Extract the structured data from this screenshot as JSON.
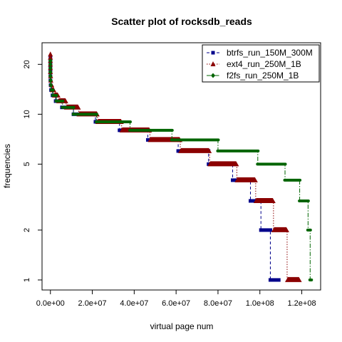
{
  "chart_data": {
    "type": "scatter",
    "title": "Scatter plot of rocksdb_reads",
    "xlabel": "virtual page num",
    "ylabel": "frequencies",
    "log_y": true,
    "xlim": [
      -4000000.0,
      129000000.0
    ],
    "ylim": [
      0.87,
      27
    ],
    "x_ticks": [
      {
        "value": 0,
        "label": "0.0e+00"
      },
      {
        "value": 20000000,
        "label": "2.0e+07"
      },
      {
        "value": 40000000,
        "label": "4.0e+07"
      },
      {
        "value": 60000000,
        "label": "6.0e+07"
      },
      {
        "value": 80000000,
        "label": "8.0e+07"
      },
      {
        "value": 100000000,
        "label": "1.0e+08"
      },
      {
        "value": 120000000,
        "label": "1.2e+08"
      }
    ],
    "y_ticks": [
      {
        "value": 1,
        "label": "1"
      },
      {
        "value": 2,
        "label": "2"
      },
      {
        "value": 5,
        "label": "5"
      },
      {
        "value": 10,
        "label": "10"
      },
      {
        "value": 20,
        "label": "20"
      }
    ],
    "legend_position": "top-right",
    "series": [
      {
        "name": "btrfs_run_150M_300M",
        "color": "#00008B",
        "marker": "square",
        "line": "dashed",
        "steps": [
          {
            "y": 22,
            "x": [
              0,
              0
            ]
          },
          {
            "y": 21,
            "x": [
              0,
              0
            ]
          },
          {
            "y": 20,
            "x": [
              0,
              0
            ]
          },
          {
            "y": 19,
            "x": [
              0,
              0
            ]
          },
          {
            "y": 18,
            "x": [
              0,
              0
            ]
          },
          {
            "y": 17,
            "x": [
              0,
              0
            ]
          },
          {
            "y": 16,
            "x": [
              0,
              100000
            ]
          },
          {
            "y": 15,
            "x": [
              100000,
              300000
            ]
          },
          {
            "y": 14,
            "x": [
              300000,
              1000000
            ]
          },
          {
            "y": 13,
            "x": [
              1000000,
              2500000
            ]
          },
          {
            "y": 12,
            "x": [
              2500000,
              5500000
            ]
          },
          {
            "y": 11,
            "x": [
              5500000,
              11000000
            ]
          },
          {
            "y": 10,
            "x": [
              11000000,
              21500000
            ]
          },
          {
            "y": 9,
            "x": [
              21500000,
              33000000
            ]
          },
          {
            "y": 8,
            "x": [
              33000000,
              46500000
            ]
          },
          {
            "y": 7,
            "x": [
              46500000,
              61000000
            ]
          },
          {
            "y": 6,
            "x": [
              61000000,
              75500000
            ]
          },
          {
            "y": 5,
            "x": [
              75500000,
              87000000
            ]
          },
          {
            "y": 4,
            "x": [
              87000000,
              95500000
            ]
          },
          {
            "y": 3,
            "x": [
              95500000,
              100500000
            ]
          },
          {
            "y": 2,
            "x": [
              100500000,
              105000000
            ]
          },
          {
            "y": 1,
            "x": [
              105000000,
              109000000
            ]
          }
        ]
      },
      {
        "name": "ext4_run_250M_1B",
        "color": "#8B0000",
        "marker": "triangle",
        "line": "dotted",
        "steps": [
          {
            "y": 23,
            "x": [
              0,
              0
            ]
          },
          {
            "y": 22,
            "x": [
              0,
              0
            ]
          },
          {
            "y": 21,
            "x": [
              0,
              0
            ]
          },
          {
            "y": 20,
            "x": [
              0,
              0
            ]
          },
          {
            "y": 19,
            "x": [
              0,
              0
            ]
          },
          {
            "y": 18,
            "x": [
              0,
              100000
            ]
          },
          {
            "y": 17,
            "x": [
              100000,
              200000
            ]
          },
          {
            "y": 16,
            "x": [
              200000,
              400000
            ]
          },
          {
            "y": 15,
            "x": [
              400000,
              800000
            ]
          },
          {
            "y": 14,
            "x": [
              800000,
              1800000
            ]
          },
          {
            "y": 13,
            "x": [
              1800000,
              3800000
            ]
          },
          {
            "y": 12,
            "x": [
              3800000,
              7500000
            ]
          },
          {
            "y": 11,
            "x": [
              7500000,
              13500000
            ]
          },
          {
            "y": 10,
            "x": [
              13500000,
              22500000
            ]
          },
          {
            "y": 9,
            "x": [
              22500000,
              34000000
            ]
          },
          {
            "y": 8,
            "x": [
              34000000,
              47500000
            ]
          },
          {
            "y": 7,
            "x": [
              47500000,
              62000000
            ]
          },
          {
            "y": 6,
            "x": [
              62000000,
              76000000
            ]
          },
          {
            "y": 5,
            "x": [
              76000000,
              89000000
            ]
          },
          {
            "y": 4,
            "x": [
              89000000,
              98000000
            ]
          },
          {
            "y": 3,
            "x": [
              98000000,
              106500000
            ]
          },
          {
            "y": 2,
            "x": [
              106500000,
              113000000
            ]
          },
          {
            "y": 1,
            "x": [
              113000000,
              119000000
            ]
          }
        ]
      },
      {
        "name": "f2fs_run_250M_1B",
        "color": "#006400",
        "marker": "diamond",
        "line": "dotdash",
        "steps": [
          {
            "y": 21,
            "x": [
              0,
              0
            ]
          },
          {
            "y": 20,
            "x": [
              0,
              0
            ]
          },
          {
            "y": 19,
            "x": [
              0,
              0
            ]
          },
          {
            "y": 18,
            "x": [
              0,
              0
            ]
          },
          {
            "y": 17,
            "x": [
              0,
              100000
            ]
          },
          {
            "y": 16,
            "x": [
              100000,
              200000
            ]
          },
          {
            "y": 15,
            "x": [
              200000,
              500000
            ]
          },
          {
            "y": 14,
            "x": [
              500000,
              1200000
            ]
          },
          {
            "y": 13,
            "x": [
              1200000,
              2800000
            ]
          },
          {
            "y": 12,
            "x": [
              2800000,
              5800000
            ]
          },
          {
            "y": 11,
            "x": [
              5800000,
              11000000
            ]
          },
          {
            "y": 10,
            "x": [
              11000000,
              22000000
            ]
          },
          {
            "y": 9,
            "x": [
              22000000,
              38000000
            ]
          },
          {
            "y": 8,
            "x": [
              38000000,
              58000000
            ]
          },
          {
            "y": 7,
            "x": [
              58000000,
              80000000
            ]
          },
          {
            "y": 6,
            "x": [
              80000000,
              99000000
            ]
          },
          {
            "y": 5,
            "x": [
              99000000,
              112000000
            ]
          },
          {
            "y": 4,
            "x": [
              112000000,
              119000000
            ]
          },
          {
            "y": 3,
            "x": [
              119000000,
              123000000
            ]
          },
          {
            "y": 2,
            "x": [
              123000000,
              124000000
            ]
          },
          {
            "y": 1,
            "x": [
              124000000,
              124500000
            ]
          }
        ]
      }
    ]
  }
}
